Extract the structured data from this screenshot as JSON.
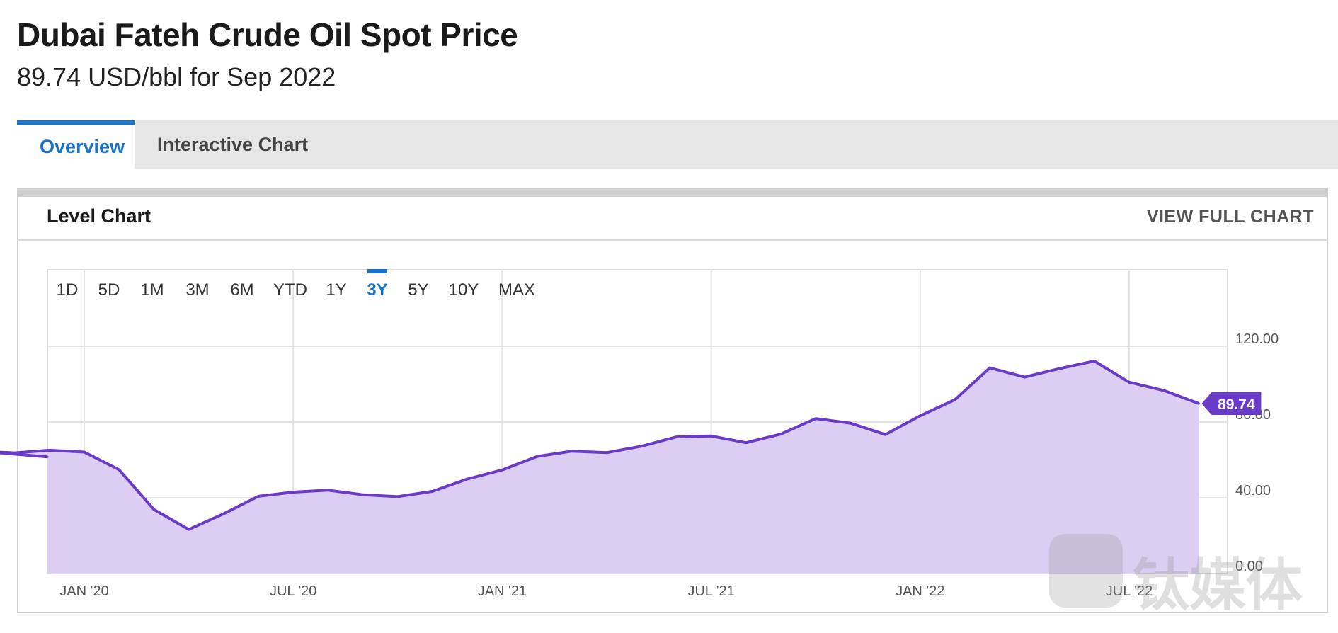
{
  "header": {
    "title": "Dubai Fateh Crude Oil Spot Price",
    "subtitle": "89.74 USD/bbl for Sep 2022"
  },
  "tabs": [
    {
      "label": "Overview",
      "active": true
    },
    {
      "label": "Interactive Chart",
      "active": false
    }
  ],
  "card": {
    "title": "Level Chart",
    "view_full_label": "VIEW FULL CHART"
  },
  "ranges": [
    {
      "label": "1D",
      "active": false
    },
    {
      "label": "5D",
      "active": false
    },
    {
      "label": "1M",
      "active": false
    },
    {
      "label": "3M",
      "active": false
    },
    {
      "label": "6M",
      "active": false
    },
    {
      "label": "YTD",
      "active": false
    },
    {
      "label": "1Y",
      "active": false
    },
    {
      "label": "3Y",
      "active": true
    },
    {
      "label": "5Y",
      "active": false
    },
    {
      "label": "10Y",
      "active": false
    },
    {
      "label": "MAX",
      "active": false
    }
  ],
  "watermark": {
    "text": "钛媒体"
  },
  "colors": {
    "line": "#6a3bc9",
    "fill": "#dccdf2",
    "accent": "#1a73c6",
    "badge": "#6a3bc9"
  },
  "chart_data": {
    "type": "area",
    "title": "",
    "xlabel": "",
    "ylabel": "",
    "ylim": [
      0,
      120
    ],
    "grid": true,
    "x_ticks": [
      "JAN '20",
      "JUL '20",
      "JAN '21",
      "JUL '21",
      "JAN '22",
      "JUL '22"
    ],
    "y_ticks": [
      "0.00",
      "40.00",
      "80.00",
      "120.00"
    ],
    "y_tick_values": [
      0,
      40,
      80,
      120
    ],
    "last_value_label": "89.74",
    "series": [
      {
        "x": [
          "Sep 2019",
          "Oct 2019",
          "Nov 2019",
          "Dec 2019",
          "Jan 2020",
          "Feb 2020",
          "Mar 2020",
          "Apr 2020",
          "May 2020",
          "Jun 2020",
          "Jul 2020",
          "Aug 2020",
          "Sep 2020",
          "Oct 2020",
          "Nov 2020",
          "Dec 2020",
          "Jan 2021",
          "Feb 2021",
          "Mar 2021",
          "Apr 2021",
          "May 2021",
          "Jun 2021",
          "Jul 2021",
          "Aug 2021",
          "Sep 2021",
          "Oct 2021",
          "Nov 2021",
          "Dec 2021",
          "Jan 2022",
          "Feb 2022",
          "Mar 2022",
          "Apr 2022",
          "May 2022",
          "Jun 2022",
          "Jul 2022",
          "Aug 2022",
          "Sep 2022"
        ],
        "values": [
          61.6,
          64.6,
          63.7,
          65.1,
          64.1,
          54.8,
          33.8,
          23.3,
          31.5,
          40.8,
          43.0,
          44.0,
          41.6,
          40.6,
          43.4,
          49.9,
          54.7,
          61.8,
          64.6,
          63.8,
          67.2,
          72.1,
          72.6,
          69.1,
          73.6,
          81.8,
          79.4,
          73.4,
          83.3,
          91.8,
          108.6,
          103.7,
          108.2,
          112.2,
          101.0,
          96.6,
          89.74
        ]
      }
    ]
  }
}
